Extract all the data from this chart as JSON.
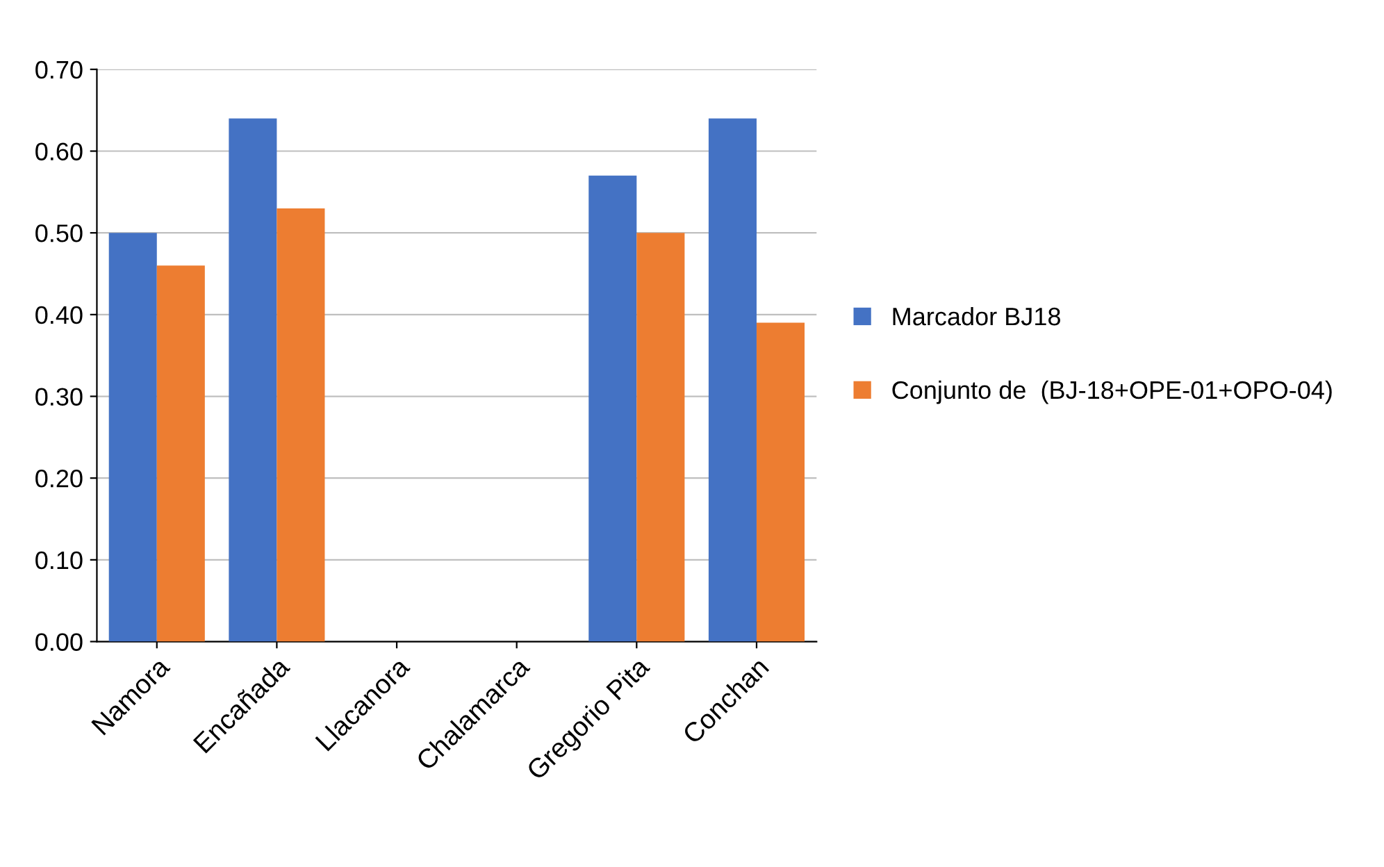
{
  "chart_data": {
    "type": "bar",
    "categories": [
      "Namora",
      "Encañada",
      "Llacanora",
      "Chalamarca",
      "Gregorio Pita",
      "Conchan"
    ],
    "series": [
      {
        "name": "Marcador BJ18",
        "color": "#4472c4",
        "values": [
          0.5,
          0.64,
          0,
          0,
          0.57,
          0.64
        ]
      },
      {
        "name": "Conjunto de  (BJ-18+OPE-01+OPO-04)",
        "color": "#ed7d31",
        "values": [
          0.46,
          0.53,
          0,
          0,
          0.5,
          0.39
        ]
      }
    ],
    "ylim": [
      0,
      0.7
    ],
    "yticks": [
      {
        "value": 0,
        "label": "0.00"
      },
      {
        "value": 0.1,
        "label": "0.10"
      },
      {
        "value": 0.2,
        "label": "0.20"
      },
      {
        "value": 0.3,
        "label": "0.30"
      },
      {
        "value": 0.4,
        "label": "0.40"
      },
      {
        "value": 0.5,
        "label": "0.50"
      },
      {
        "value": 0.6,
        "label": "0.60"
      },
      {
        "value": 0.7,
        "label": "0.70"
      }
    ],
    "grid": "y",
    "legend": "right"
  }
}
